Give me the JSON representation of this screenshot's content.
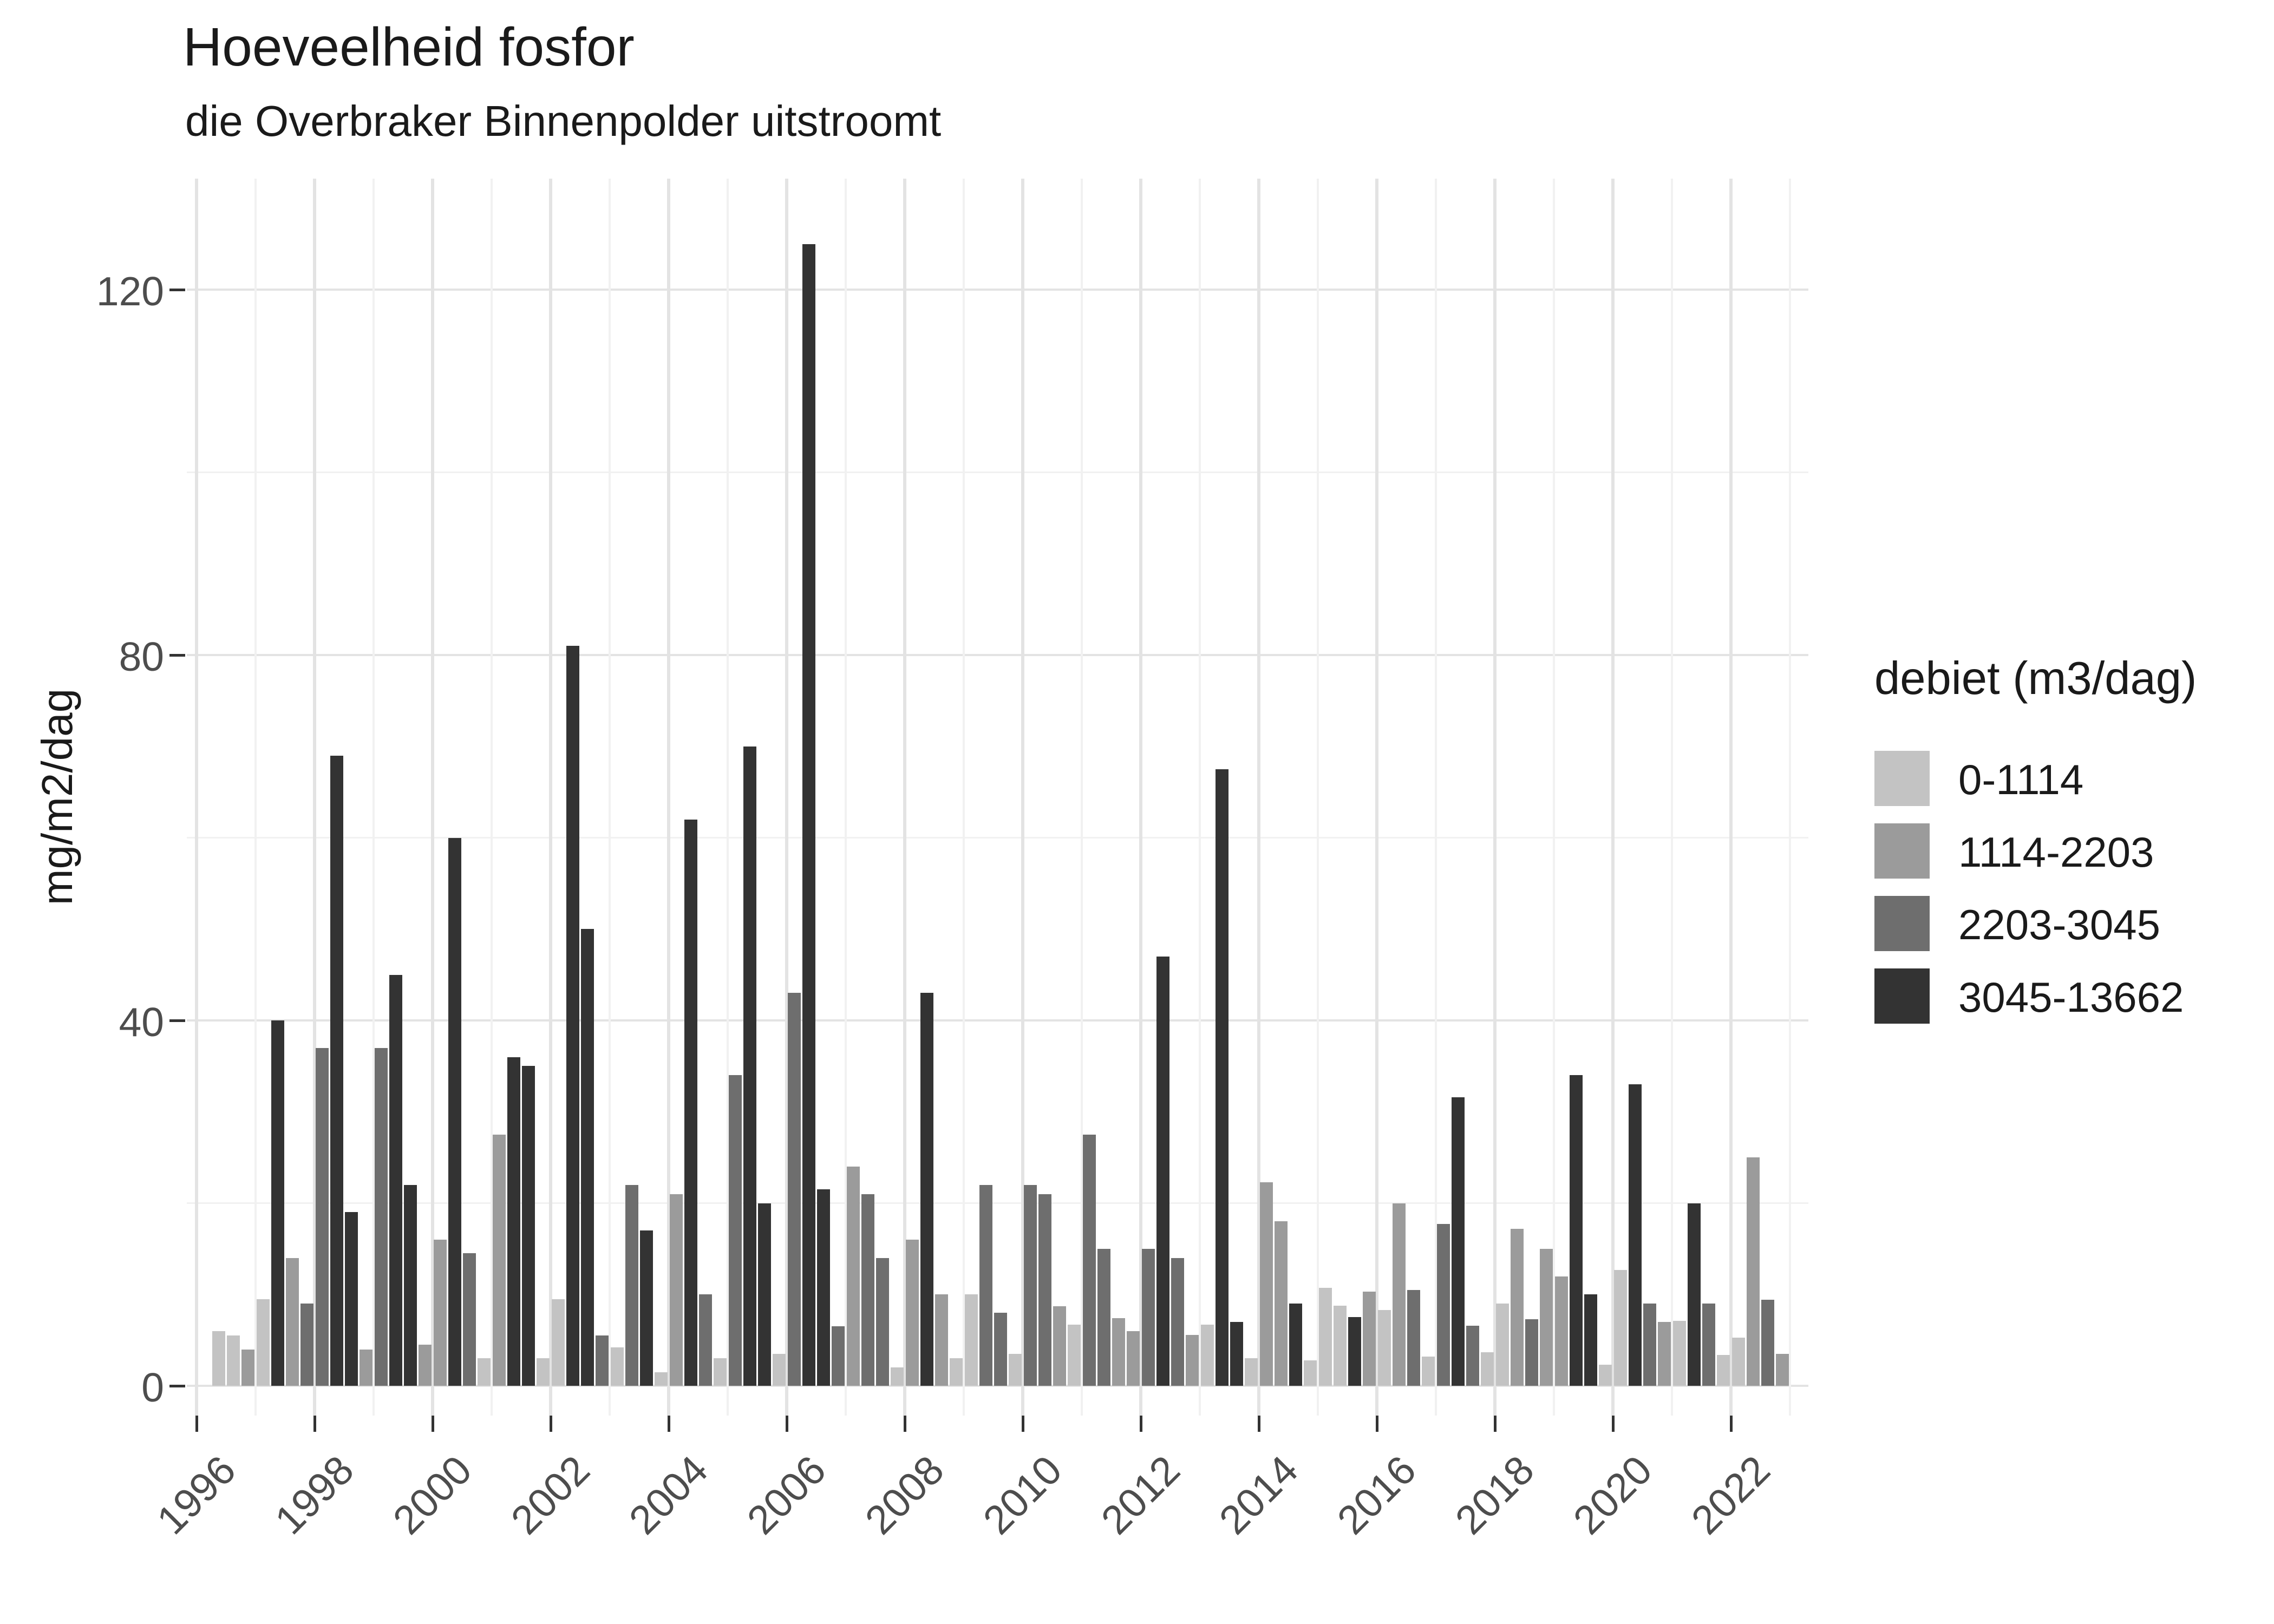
{
  "header": {
    "title": "Hoeveelheid fosfor",
    "subtitle": "die Overbraker Binnenpolder uitstroomt"
  },
  "y_axis": {
    "label": "mg/m2/dag",
    "tick_labels": [
      "0",
      "40",
      "80",
      "120"
    ],
    "major_ticks": [
      0,
      40,
      80,
      120
    ],
    "minor_gridlines": [
      20,
      60,
      100
    ]
  },
  "x_axis": {
    "tick_labels": [
      "1996",
      "1998",
      "2000",
      "2002",
      "2004",
      "2006",
      "2008",
      "2010",
      "2012",
      "2014",
      "2016",
      "2018",
      "2020",
      "2022"
    ],
    "major_tick_years": [
      1996,
      1998,
      2000,
      2002,
      2004,
      2006,
      2008,
      2010,
      2012,
      2014,
      2016,
      2018,
      2020,
      2022
    ],
    "minor_gridline_years": [
      1997,
      1999,
      2001,
      2003,
      2005,
      2007,
      2009,
      2011,
      2013,
      2015,
      2017,
      2019,
      2021,
      2023
    ]
  },
  "legend": {
    "title": "debiet (m3/dag)",
    "items": [
      {
        "label": "0-1114",
        "color": "#c3c3c3"
      },
      {
        "label": "1114-2203",
        "color": "#9b9b9b"
      },
      {
        "label": "2203-3045",
        "color": "#6e6e6e"
      },
      {
        "label": "3045-13662",
        "color": "#333333"
      }
    ]
  },
  "chart_data": {
    "type": "bar",
    "title": "Hoeveelheid fosfor",
    "subtitle": "die Overbraker Binnenpolder uitstroomt",
    "xlabel": "",
    "ylabel": "mg/m2/dag",
    "ylim": [
      0,
      132
    ],
    "x_range": [
      1996,
      2023.4
    ],
    "grid": true,
    "legend_position": "right",
    "legend_title": "debiet (m3/dag)",
    "bar_width_years": 0.22,
    "note": "one bar per quarter; fill = debiet class",
    "bars": [
      {
        "year": 1996,
        "quarter": 2,
        "value": 6,
        "debiet": "0-1114"
      },
      {
        "year": 1996,
        "quarter": 3,
        "value": 5.5,
        "debiet": "0-1114"
      },
      {
        "year": 1996,
        "quarter": 4,
        "value": 4,
        "debiet": "1114-2203"
      },
      {
        "year": 1997,
        "quarter": 1,
        "value": 9.5,
        "debiet": "0-1114"
      },
      {
        "year": 1997,
        "quarter": 2,
        "value": 40,
        "debiet": "3045-13662"
      },
      {
        "year": 1997,
        "quarter": 3,
        "value": 14,
        "debiet": "1114-2203"
      },
      {
        "year": 1997,
        "quarter": 4,
        "value": 9,
        "debiet": "2203-3045"
      },
      {
        "year": 1998,
        "quarter": 1,
        "value": 37,
        "debiet": "2203-3045"
      },
      {
        "year": 1998,
        "quarter": 2,
        "value": 69,
        "debiet": "3045-13662"
      },
      {
        "year": 1998,
        "quarter": 3,
        "value": 19,
        "debiet": "3045-13662"
      },
      {
        "year": 1998,
        "quarter": 4,
        "value": 4,
        "debiet": "1114-2203"
      },
      {
        "year": 1999,
        "quarter": 1,
        "value": 37,
        "debiet": "2203-3045"
      },
      {
        "year": 1999,
        "quarter": 2,
        "value": 45,
        "debiet": "3045-13662"
      },
      {
        "year": 1999,
        "quarter": 3,
        "value": 22,
        "debiet": "3045-13662"
      },
      {
        "year": 1999,
        "quarter": 4,
        "value": 4.5,
        "debiet": "1114-2203"
      },
      {
        "year": 2000,
        "quarter": 1,
        "value": 16,
        "debiet": "1114-2203"
      },
      {
        "year": 2000,
        "quarter": 2,
        "value": 60,
        "debiet": "3045-13662"
      },
      {
        "year": 2000,
        "quarter": 3,
        "value": 14.5,
        "debiet": "2203-3045"
      },
      {
        "year": 2000,
        "quarter": 4,
        "value": 3,
        "debiet": "0-1114"
      },
      {
        "year": 2001,
        "quarter": 1,
        "value": 27.5,
        "debiet": "1114-2203"
      },
      {
        "year": 2001,
        "quarter": 2,
        "value": 36,
        "debiet": "3045-13662"
      },
      {
        "year": 2001,
        "quarter": 3,
        "value": 35,
        "debiet": "3045-13662"
      },
      {
        "year": 2001,
        "quarter": 4,
        "value": 3,
        "debiet": "0-1114"
      },
      {
        "year": 2002,
        "quarter": 1,
        "value": 9.5,
        "debiet": "0-1114"
      },
      {
        "year": 2002,
        "quarter": 2,
        "value": 81,
        "debiet": "3045-13662"
      },
      {
        "year": 2002,
        "quarter": 3,
        "value": 50,
        "debiet": "3045-13662"
      },
      {
        "year": 2002,
        "quarter": 4,
        "value": 5.5,
        "debiet": "2203-3045"
      },
      {
        "year": 2003,
        "quarter": 1,
        "value": 4.2,
        "debiet": "0-1114"
      },
      {
        "year": 2003,
        "quarter": 2,
        "value": 22,
        "debiet": "2203-3045"
      },
      {
        "year": 2003,
        "quarter": 3,
        "value": 17,
        "debiet": "3045-13662"
      },
      {
        "year": 2003,
        "quarter": 4,
        "value": 1.5,
        "debiet": "0-1114"
      },
      {
        "year": 2004,
        "quarter": 1,
        "value": 21,
        "debiet": "1114-2203"
      },
      {
        "year": 2004,
        "quarter": 2,
        "value": 62,
        "debiet": "3045-13662"
      },
      {
        "year": 2004,
        "quarter": 3,
        "value": 10,
        "debiet": "2203-3045"
      },
      {
        "year": 2004,
        "quarter": 4,
        "value": 3,
        "debiet": "0-1114"
      },
      {
        "year": 2005,
        "quarter": 1,
        "value": 34,
        "debiet": "2203-3045"
      },
      {
        "year": 2005,
        "quarter": 2,
        "value": 70,
        "debiet": "3045-13662"
      },
      {
        "year": 2005,
        "quarter": 3,
        "value": 20,
        "debiet": "3045-13662"
      },
      {
        "year": 2005,
        "quarter": 4,
        "value": 3.5,
        "debiet": "0-1114"
      },
      {
        "year": 2006,
        "quarter": 1,
        "value": 43,
        "debiet": "2203-3045"
      },
      {
        "year": 2006,
        "quarter": 2,
        "value": 125,
        "debiet": "3045-13662"
      },
      {
        "year": 2006,
        "quarter": 3,
        "value": 21.5,
        "debiet": "3045-13662"
      },
      {
        "year": 2006,
        "quarter": 4,
        "value": 6.5,
        "debiet": "2203-3045"
      },
      {
        "year": 2007,
        "quarter": 1,
        "value": 24,
        "debiet": "1114-2203"
      },
      {
        "year": 2007,
        "quarter": 2,
        "value": 21,
        "debiet": "2203-3045"
      },
      {
        "year": 2007,
        "quarter": 3,
        "value": 14,
        "debiet": "2203-3045"
      },
      {
        "year": 2007,
        "quarter": 4,
        "value": 2,
        "debiet": "0-1114"
      },
      {
        "year": 2008,
        "quarter": 1,
        "value": 16,
        "debiet": "1114-2203"
      },
      {
        "year": 2008,
        "quarter": 2,
        "value": 43,
        "debiet": "3045-13662"
      },
      {
        "year": 2008,
        "quarter": 3,
        "value": 10,
        "debiet": "1114-2203"
      },
      {
        "year": 2008,
        "quarter": 4,
        "value": 3,
        "debiet": "0-1114"
      },
      {
        "year": 2009,
        "quarter": 1,
        "value": 10,
        "debiet": "0-1114"
      },
      {
        "year": 2009,
        "quarter": 2,
        "value": 22,
        "debiet": "2203-3045"
      },
      {
        "year": 2009,
        "quarter": 3,
        "value": 8,
        "debiet": "2203-3045"
      },
      {
        "year": 2009,
        "quarter": 4,
        "value": 3.5,
        "debiet": "0-1114"
      },
      {
        "year": 2010,
        "quarter": 1,
        "value": 22,
        "debiet": "2203-3045"
      },
      {
        "year": 2010,
        "quarter": 2,
        "value": 21,
        "debiet": "2203-3045"
      },
      {
        "year": 2010,
        "quarter": 3,
        "value": 8.7,
        "debiet": "1114-2203"
      },
      {
        "year": 2010,
        "quarter": 4,
        "value": 6.7,
        "debiet": "0-1114"
      },
      {
        "year": 2011,
        "quarter": 1,
        "value": 27.5,
        "debiet": "2203-3045"
      },
      {
        "year": 2011,
        "quarter": 2,
        "value": 15,
        "debiet": "2203-3045"
      },
      {
        "year": 2011,
        "quarter": 3,
        "value": 7.4,
        "debiet": "1114-2203"
      },
      {
        "year": 2011,
        "quarter": 4,
        "value": 6,
        "debiet": "1114-2203"
      },
      {
        "year": 2012,
        "quarter": 1,
        "value": 15,
        "debiet": "2203-3045"
      },
      {
        "year": 2012,
        "quarter": 2,
        "value": 47,
        "debiet": "3045-13662"
      },
      {
        "year": 2012,
        "quarter": 3,
        "value": 14,
        "debiet": "2203-3045"
      },
      {
        "year": 2012,
        "quarter": 4,
        "value": 5.6,
        "debiet": "1114-2203"
      },
      {
        "year": 2013,
        "quarter": 1,
        "value": 6.7,
        "debiet": "0-1114"
      },
      {
        "year": 2013,
        "quarter": 2,
        "value": 67.5,
        "debiet": "3045-13662"
      },
      {
        "year": 2013,
        "quarter": 3,
        "value": 7,
        "debiet": "3045-13662"
      },
      {
        "year": 2013,
        "quarter": 4,
        "value": 3,
        "debiet": "0-1114"
      },
      {
        "year": 2014,
        "quarter": 1,
        "value": 22.3,
        "debiet": "1114-2203"
      },
      {
        "year": 2014,
        "quarter": 2,
        "value": 18,
        "debiet": "1114-2203"
      },
      {
        "year": 2014,
        "quarter": 3,
        "value": 9,
        "debiet": "3045-13662"
      },
      {
        "year": 2014,
        "quarter": 4,
        "value": 2.8,
        "debiet": "0-1114"
      },
      {
        "year": 2015,
        "quarter": 1,
        "value": 10.7,
        "debiet": "0-1114"
      },
      {
        "year": 2015,
        "quarter": 2,
        "value": 8.8,
        "debiet": "0-1114"
      },
      {
        "year": 2015,
        "quarter": 3,
        "value": 7.5,
        "debiet": "3045-13662"
      },
      {
        "year": 2015,
        "quarter": 4,
        "value": 10.3,
        "debiet": "1114-2203"
      },
      {
        "year": 2016,
        "quarter": 1,
        "value": 8.3,
        "debiet": "0-1114"
      },
      {
        "year": 2016,
        "quarter": 2,
        "value": 20,
        "debiet": "1114-2203"
      },
      {
        "year": 2016,
        "quarter": 3,
        "value": 10.5,
        "debiet": "2203-3045"
      },
      {
        "year": 2016,
        "quarter": 4,
        "value": 3.2,
        "debiet": "0-1114"
      },
      {
        "year": 2017,
        "quarter": 1,
        "value": 17.7,
        "debiet": "2203-3045"
      },
      {
        "year": 2017,
        "quarter": 2,
        "value": 31.6,
        "debiet": "3045-13662"
      },
      {
        "year": 2017,
        "quarter": 3,
        "value": 6.6,
        "debiet": "2203-3045"
      },
      {
        "year": 2017,
        "quarter": 4,
        "value": 3.7,
        "debiet": "0-1114"
      },
      {
        "year": 2018,
        "quarter": 1,
        "value": 9,
        "debiet": "0-1114"
      },
      {
        "year": 2018,
        "quarter": 2,
        "value": 17.2,
        "debiet": "1114-2203"
      },
      {
        "year": 2018,
        "quarter": 3,
        "value": 7.3,
        "debiet": "2203-3045"
      },
      {
        "year": 2018,
        "quarter": 4,
        "value": 15,
        "debiet": "1114-2203"
      },
      {
        "year": 2019,
        "quarter": 1,
        "value": 12,
        "debiet": "1114-2203"
      },
      {
        "year": 2019,
        "quarter": 2,
        "value": 34,
        "debiet": "3045-13662"
      },
      {
        "year": 2019,
        "quarter": 3,
        "value": 10,
        "debiet": "3045-13662"
      },
      {
        "year": 2019,
        "quarter": 4,
        "value": 2.3,
        "debiet": "0-1114"
      },
      {
        "year": 2020,
        "quarter": 1,
        "value": 12.7,
        "debiet": "0-1114"
      },
      {
        "year": 2020,
        "quarter": 2,
        "value": 33,
        "debiet": "3045-13662"
      },
      {
        "year": 2020,
        "quarter": 3,
        "value": 9,
        "debiet": "2203-3045"
      },
      {
        "year": 2020,
        "quarter": 4,
        "value": 7,
        "debiet": "1114-2203"
      },
      {
        "year": 2021,
        "quarter": 1,
        "value": 7.1,
        "debiet": "0-1114"
      },
      {
        "year": 2021,
        "quarter": 2,
        "value": 20,
        "debiet": "3045-13662"
      },
      {
        "year": 2021,
        "quarter": 3,
        "value": 9,
        "debiet": "2203-3045"
      },
      {
        "year": 2021,
        "quarter": 4,
        "value": 3.4,
        "debiet": "0-1114"
      },
      {
        "year": 2022,
        "quarter": 1,
        "value": 5.3,
        "debiet": "0-1114"
      },
      {
        "year": 2022,
        "quarter": 2,
        "value": 25,
        "debiet": "1114-2203"
      },
      {
        "year": 2022,
        "quarter": 3,
        "value": 9.4,
        "debiet": "2203-3045"
      },
      {
        "year": 2022,
        "quarter": 4,
        "value": 3.5,
        "debiet": "1114-2203"
      }
    ]
  }
}
